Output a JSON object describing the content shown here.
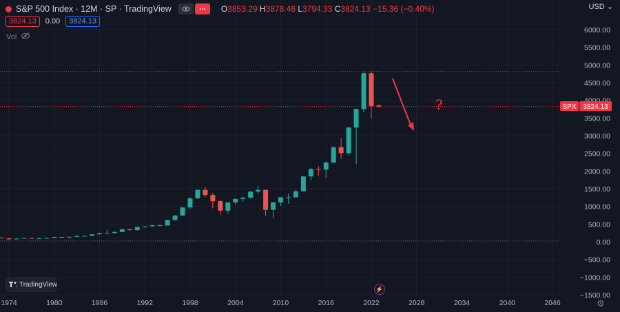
{
  "header": {
    "title": "S&P 500 Index · 12M · SP · TradingView",
    "ohlc": {
      "o_label": "O",
      "o": "3853.29",
      "h_label": "H",
      "h": "3878.46",
      "l_label": "L",
      "l": "3794.33",
      "c_label": "C",
      "c": "3824.13",
      "change": "−15.36 (−0.40%)"
    },
    "bid": "3824.13",
    "spread": "0.00",
    "ask": "3824.13",
    "vol_label": "Vol",
    "currency": "USD"
  },
  "annotation": {
    "question": "?"
  },
  "logo_text": "TradingView",
  "last_price_tag": {
    "symbol": "SPX",
    "price": "3824.13"
  },
  "colors": {
    "up": "#26a69a",
    "down": "#ef5350",
    "background": "#131722",
    "annotation": "#f23645"
  },
  "chart_data": {
    "type": "candlestick",
    "x_ticks": [
      1974,
      1980,
      1986,
      1992,
      1998,
      2004,
      2010,
      2016,
      2022,
      2028,
      2034,
      2040,
      2046
    ],
    "y_ticks": [
      -1500,
      -1000,
      -500,
      0,
      500,
      1000,
      1500,
      2000,
      2500,
      3000,
      3500,
      4000,
      4500,
      5000,
      5500,
      6000
    ],
    "y_tick_labels": [
      "−1500.00",
      "−1000.00",
      "−500.00",
      "0.00",
      "500.00",
      "1000.00",
      "1500.00",
      "2000.00",
      "2500.00",
      "3000.00",
      "3500.00",
      "4000.00",
      "4500.00",
      "5000.00",
      "5500.00",
      "6000.00"
    ],
    "xlim": [
      1972,
      2051
    ],
    "ylim": [
      -1570,
      6320
    ],
    "hlines": [
      4818,
      3824,
      25
    ],
    "candles": [
      {
        "year": 1970,
        "o": 92,
        "h": 94,
        "l": 69,
        "c": 92
      },
      {
        "year": 1971,
        "o": 92,
        "h": 104,
        "l": 90,
        "c": 102
      },
      {
        "year": 1972,
        "o": 102,
        "h": 120,
        "l": 101,
        "c": 118
      },
      {
        "year": 1973,
        "o": 118,
        "h": 121,
        "l": 92,
        "c": 97
      },
      {
        "year": 1974,
        "o": 97,
        "h": 99,
        "l": 62,
        "c": 69
      },
      {
        "year": 1975,
        "o": 69,
        "h": 96,
        "l": 70,
        "c": 90
      },
      {
        "year": 1976,
        "o": 90,
        "h": 108,
        "l": 90,
        "c": 107
      },
      {
        "year": 1977,
        "o": 107,
        "h": 107,
        "l": 90,
        "c": 95
      },
      {
        "year": 1978,
        "o": 95,
        "h": 107,
        "l": 86,
        "c": 96
      },
      {
        "year": 1979,
        "o": 96,
        "h": 111,
        "l": 96,
        "c": 108
      },
      {
        "year": 1980,
        "o": 108,
        "h": 141,
        "l": 98,
        "c": 136
      },
      {
        "year": 1981,
        "o": 136,
        "h": 138,
        "l": 112,
        "c": 123
      },
      {
        "year": 1982,
        "o": 123,
        "h": 143,
        "l": 102,
        "c": 140
      },
      {
        "year": 1983,
        "o": 140,
        "h": 173,
        "l": 138,
        "c": 165
      },
      {
        "year": 1984,
        "o": 165,
        "h": 171,
        "l": 147,
        "c": 167
      },
      {
        "year": 1985,
        "o": 167,
        "h": 212,
        "l": 163,
        "c": 211
      },
      {
        "year": 1986,
        "o": 211,
        "h": 254,
        "l": 203,
        "c": 242
      },
      {
        "year": 1987,
        "o": 242,
        "h": 337,
        "l": 216,
        "c": 247
      },
      {
        "year": 1988,
        "o": 247,
        "h": 283,
        "l": 242,
        "c": 278
      },
      {
        "year": 1989,
        "o": 278,
        "h": 360,
        "l": 275,
        "c": 353
      },
      {
        "year": 1990,
        "o": 353,
        "h": 369,
        "l": 294,
        "c": 330
      },
      {
        "year": 1991,
        "o": 330,
        "h": 418,
        "l": 311,
        "c": 417
      },
      {
        "year": 1992,
        "o": 417,
        "h": 442,
        "l": 394,
        "c": 436
      },
      {
        "year": 1993,
        "o": 436,
        "h": 471,
        "l": 429,
        "c": 466
      },
      {
        "year": 1994,
        "o": 466,
        "h": 482,
        "l": 435,
        "c": 459
      },
      {
        "year": 1995,
        "o": 459,
        "h": 622,
        "l": 459,
        "c": 616
      },
      {
        "year": 1996,
        "o": 616,
        "h": 757,
        "l": 598,
        "c": 741
      },
      {
        "year": 1997,
        "o": 741,
        "h": 983,
        "l": 737,
        "c": 970
      },
      {
        "year": 1998,
        "o": 970,
        "h": 1241,
        "l": 923,
        "c": 1229
      },
      {
        "year": 1999,
        "o": 1229,
        "h": 1473,
        "l": 1205,
        "c": 1469
      },
      {
        "year": 2000,
        "o": 1469,
        "h": 1553,
        "l": 1254,
        "c": 1320
      },
      {
        "year": 2001,
        "o": 1320,
        "h": 1383,
        "l": 945,
        "c": 1148
      },
      {
        "year": 2002,
        "o": 1148,
        "h": 1176,
        "l": 768,
        "c": 880
      },
      {
        "year": 2003,
        "o": 880,
        "h": 1112,
        "l": 788,
        "c": 1112
      },
      {
        "year": 2004,
        "o": 1112,
        "h": 1217,
        "l": 1060,
        "c": 1212
      },
      {
        "year": 2005,
        "o": 1212,
        "h": 1275,
        "l": 1137,
        "c": 1248
      },
      {
        "year": 2006,
        "o": 1248,
        "h": 1431,
        "l": 1219,
        "c": 1418
      },
      {
        "year": 2007,
        "o": 1418,
        "h": 1576,
        "l": 1364,
        "c": 1468
      },
      {
        "year": 2008,
        "o": 1468,
        "h": 1471,
        "l": 741,
        "c": 903
      },
      {
        "year": 2009,
        "o": 903,
        "h": 1130,
        "l": 667,
        "c": 1115
      },
      {
        "year": 2010,
        "o": 1115,
        "h": 1263,
        "l": 1011,
        "c": 1258
      },
      {
        "year": 2011,
        "o": 1258,
        "h": 1371,
        "l": 1075,
        "c": 1258
      },
      {
        "year": 2012,
        "o": 1258,
        "h": 1475,
        "l": 1259,
        "c": 1426
      },
      {
        "year": 2013,
        "o": 1426,
        "h": 1849,
        "l": 1426,
        "c": 1848
      },
      {
        "year": 2014,
        "o": 1848,
        "h": 2094,
        "l": 1738,
        "c": 2059
      },
      {
        "year": 2015,
        "o": 2059,
        "h": 2135,
        "l": 1867,
        "c": 2044
      },
      {
        "year": 2016,
        "o": 2044,
        "h": 2278,
        "l": 1810,
        "c": 2239
      },
      {
        "year": 2017,
        "o": 2239,
        "h": 2695,
        "l": 2246,
        "c": 2674
      },
      {
        "year": 2018,
        "o": 2674,
        "h": 2941,
        "l": 2346,
        "c": 2507
      },
      {
        "year": 2019,
        "o": 2507,
        "h": 3248,
        "l": 2444,
        "c": 3231
      },
      {
        "year": 2020,
        "o": 3231,
        "h": 3760,
        "l": 2192,
        "c": 3756
      },
      {
        "year": 2021,
        "o": 3756,
        "h": 4818,
        "l": 3663,
        "c": 4766
      },
      {
        "year": 2022,
        "o": 4766,
        "h": 4818,
        "l": 3492,
        "c": 3840
      },
      {
        "year": 2023,
        "o": 3853,
        "h": 3878,
        "l": 3794,
        "c": 3824
      }
    ]
  }
}
